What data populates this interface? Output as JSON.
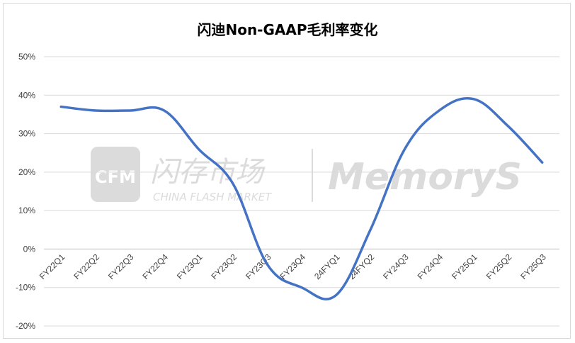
{
  "chart_data": {
    "type": "line",
    "title": "闪迪Non-GAAP毛利率变化",
    "xlabel": "",
    "ylabel": "",
    "categories": [
      "FY22Q1",
      "FY22Q2",
      "FY22Q3",
      "FY22Q4",
      "FY23Q1",
      "FY23Q2",
      "FY23Q3",
      "FY23Q4",
      "24FYQ1",
      "24FYQ2",
      "FY24Q3",
      "FY24Q4",
      "FY25Q1",
      "FY25Q2",
      "FY25Q3"
    ],
    "series": [
      {
        "values": [
          37,
          36,
          36,
          36,
          26,
          17,
          -4,
          -10,
          -12,
          5,
          26,
          36,
          39,
          32,
          22.5
        ]
      }
    ],
    "ylim": [
      -20,
      50
    ],
    "yticks": [
      -20,
      -10,
      0,
      10,
      20,
      30,
      40,
      50
    ],
    "ytick_labels": [
      "-20%",
      "-10%",
      "0%",
      "10%",
      "20%",
      "30%",
      "40%",
      "50%"
    ],
    "grid": true,
    "legend": "none",
    "colors": {
      "line": "#4472c4",
      "grid": "#d9d9d9",
      "text": "#404040"
    }
  },
  "watermark": {
    "logo_left": "CFM",
    "brand_cn": "闪存市场",
    "brand_en": "CHINA FLASH MARKET",
    "brand_right": "MemoryS"
  }
}
